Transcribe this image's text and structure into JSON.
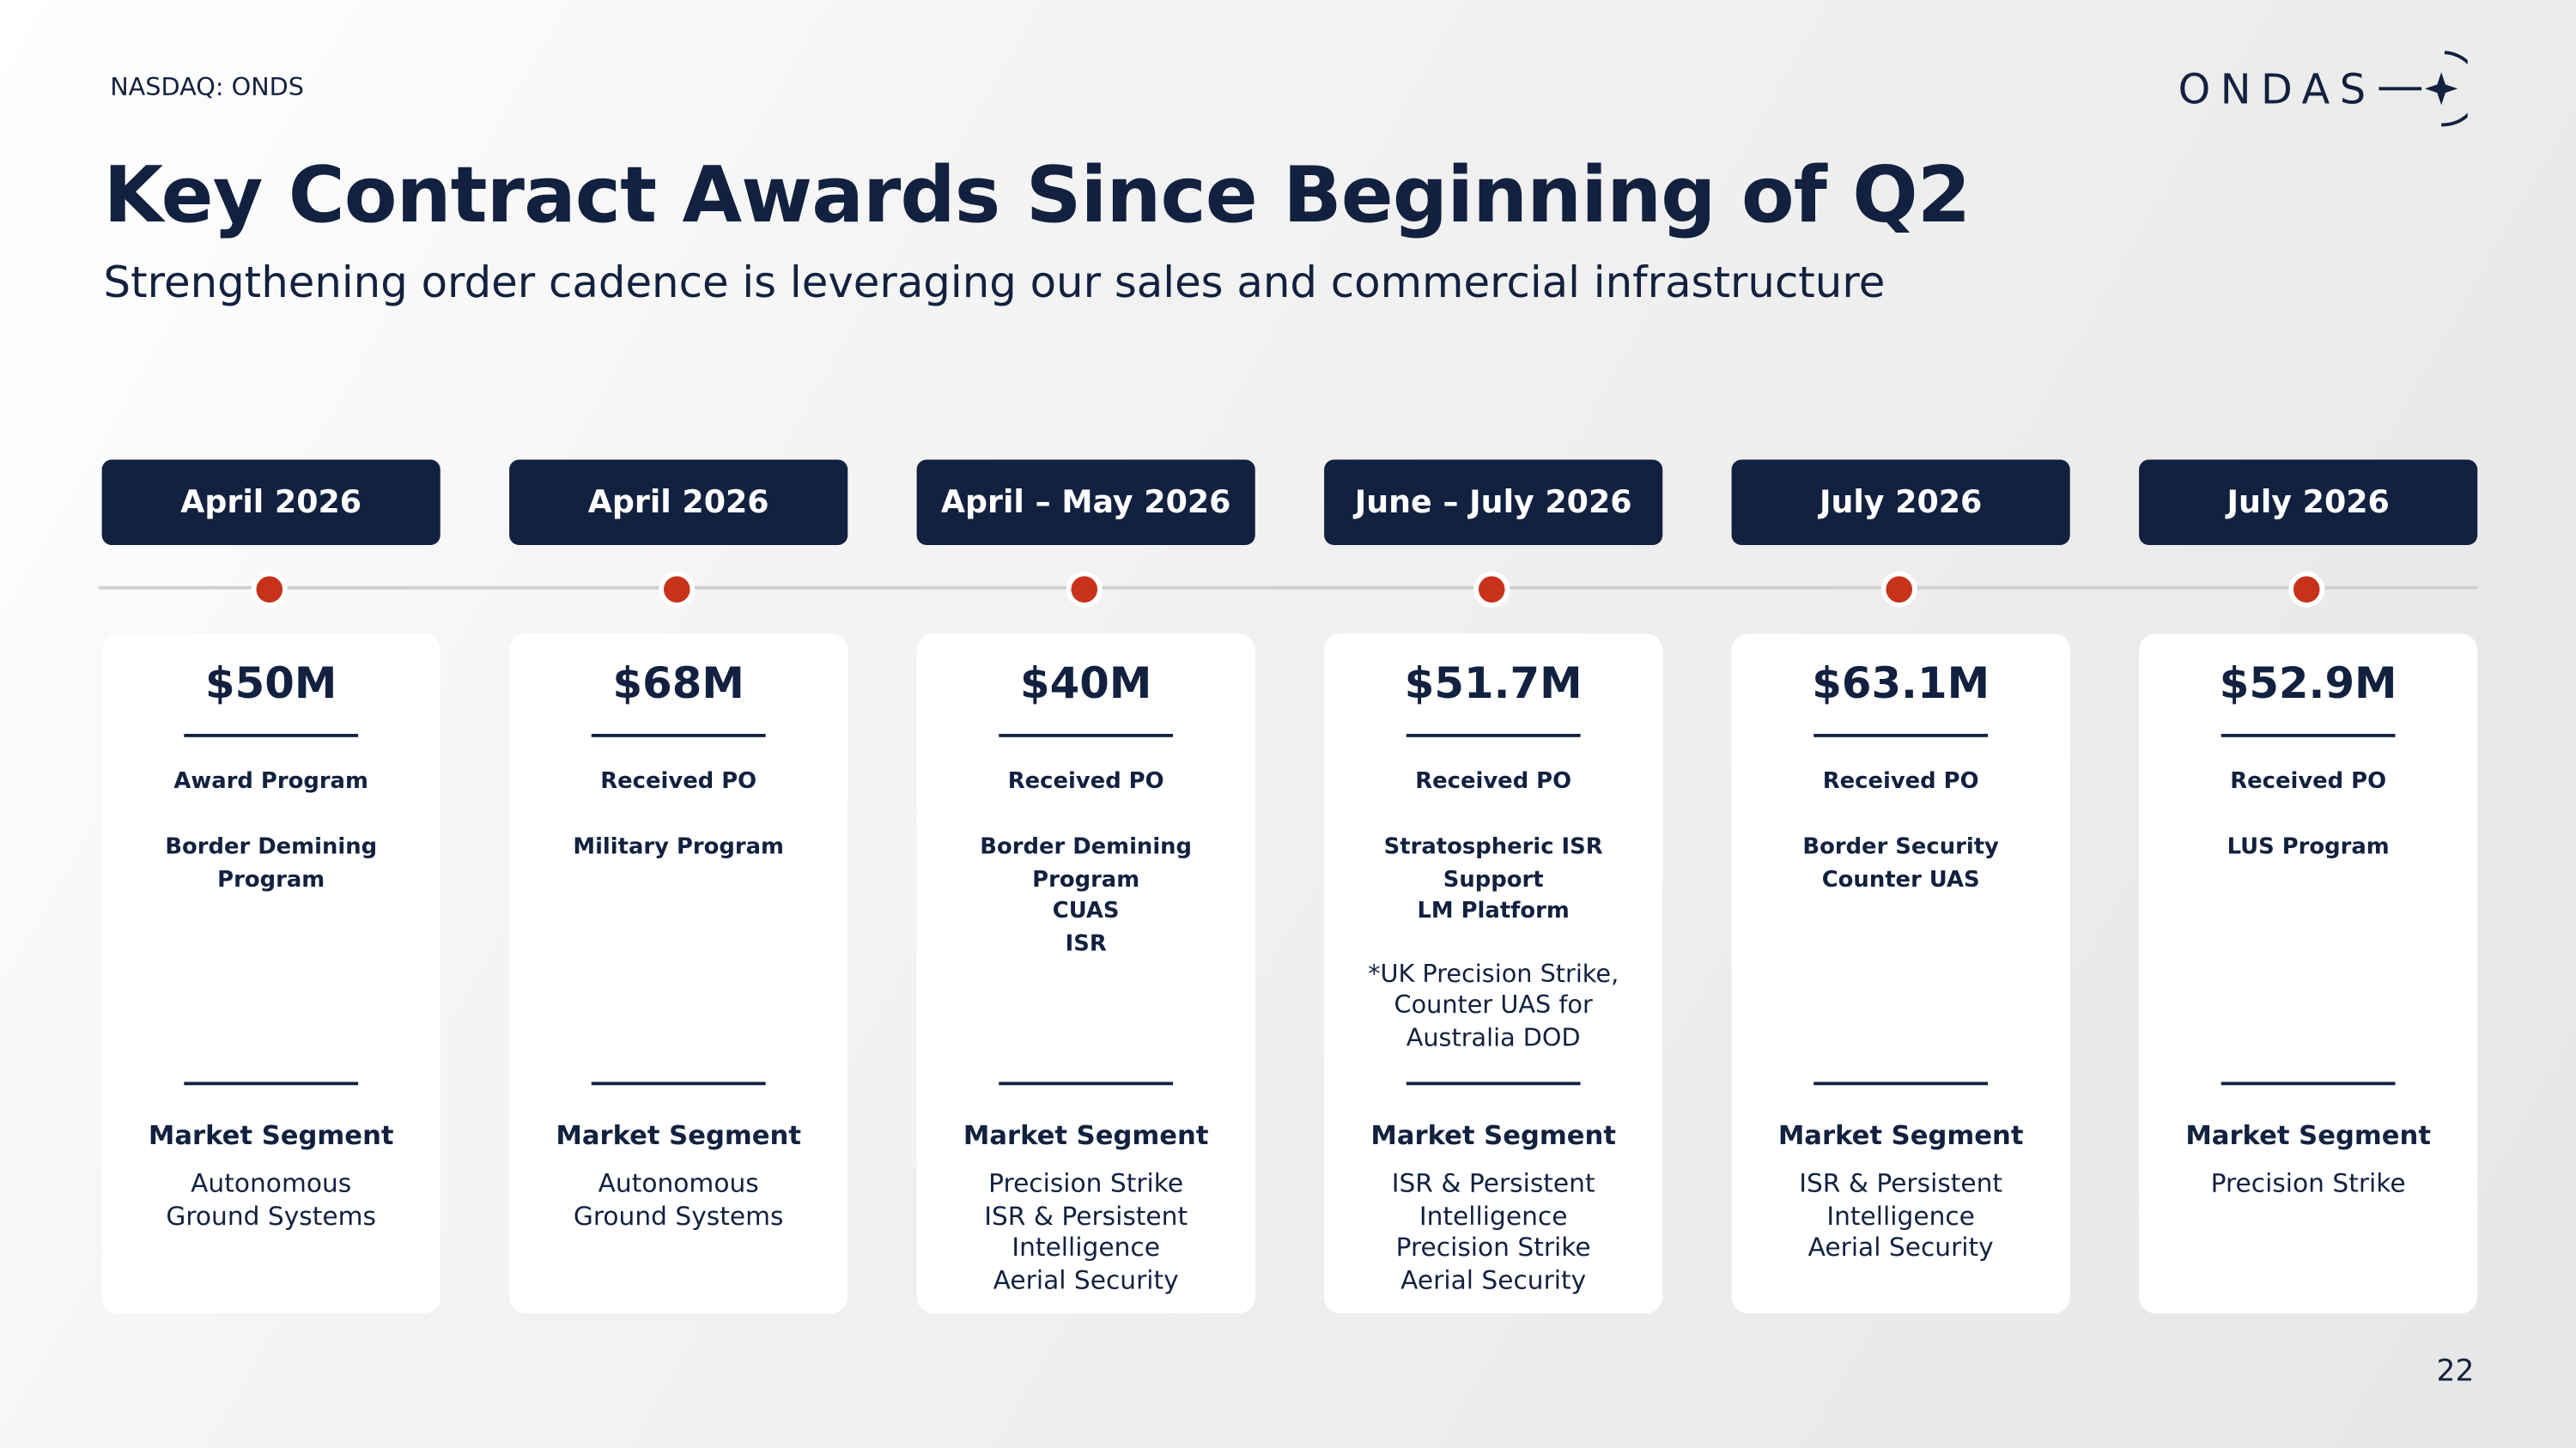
{
  "header": {
    "ticker": "NASDAQ: ONDS",
    "logo": "ONDAS"
  },
  "title": "Key Contract Awards Since Beginning of Q2",
  "subtitle": "Strengthening order cadence is leveraging our sales and commercial infrastructure",
  "cards": [
    {
      "date": "April 2026",
      "amount": "$50M",
      "type": "Award Program",
      "programs": [
        "Border Demining Program"
      ],
      "segment_label": "Market Segment",
      "segments": [
        "Autonomous",
        "Ground Systems"
      ]
    },
    {
      "date": "April 2026",
      "amount": "$68M",
      "type": "Received PO",
      "programs": [
        "Military Program"
      ],
      "segment_label": "Market Segment",
      "segments": [
        "Autonomous",
        "Ground Systems"
      ]
    },
    {
      "date": "April – May 2026",
      "amount": "$40M",
      "type": "Received PO",
      "programs": [
        "Border Demining Program",
        "CUAS",
        "ISR"
      ],
      "segment_label": "Market Segment",
      "segments": [
        "Precision Strike",
        "ISR & Persistent",
        "Intelligence",
        "Aerial Security"
      ]
    },
    {
      "date": "June – July 2026",
      "amount": "$51.7M",
      "type": "Received PO",
      "programs": [
        "Stratospheric ISR Support",
        "LM Platform"
      ],
      "note": "*UK Precision Strike, Counter UAS for Australia DOD",
      "segment_label": "Market Segment",
      "segments": [
        "ISR & Persistent",
        "Intelligence",
        "Precision Strike",
        "Aerial Security"
      ]
    },
    {
      "date": "July 2026",
      "amount": "$63.1M",
      "type": "Received PO",
      "programs": [
        "Border Security",
        "Counter UAS"
      ],
      "segment_label": "Market Segment",
      "segments": [
        "ISR & Persistent",
        "Intelligence",
        "Aerial Security"
      ]
    },
    {
      "date": "July 2026",
      "amount": "$52.9M",
      "type": "Received PO",
      "programs": [
        "LUS Program"
      ],
      "segment_label": "Market Segment",
      "segments": [
        "Precision Strike"
      ]
    }
  ],
  "page_number": "22"
}
